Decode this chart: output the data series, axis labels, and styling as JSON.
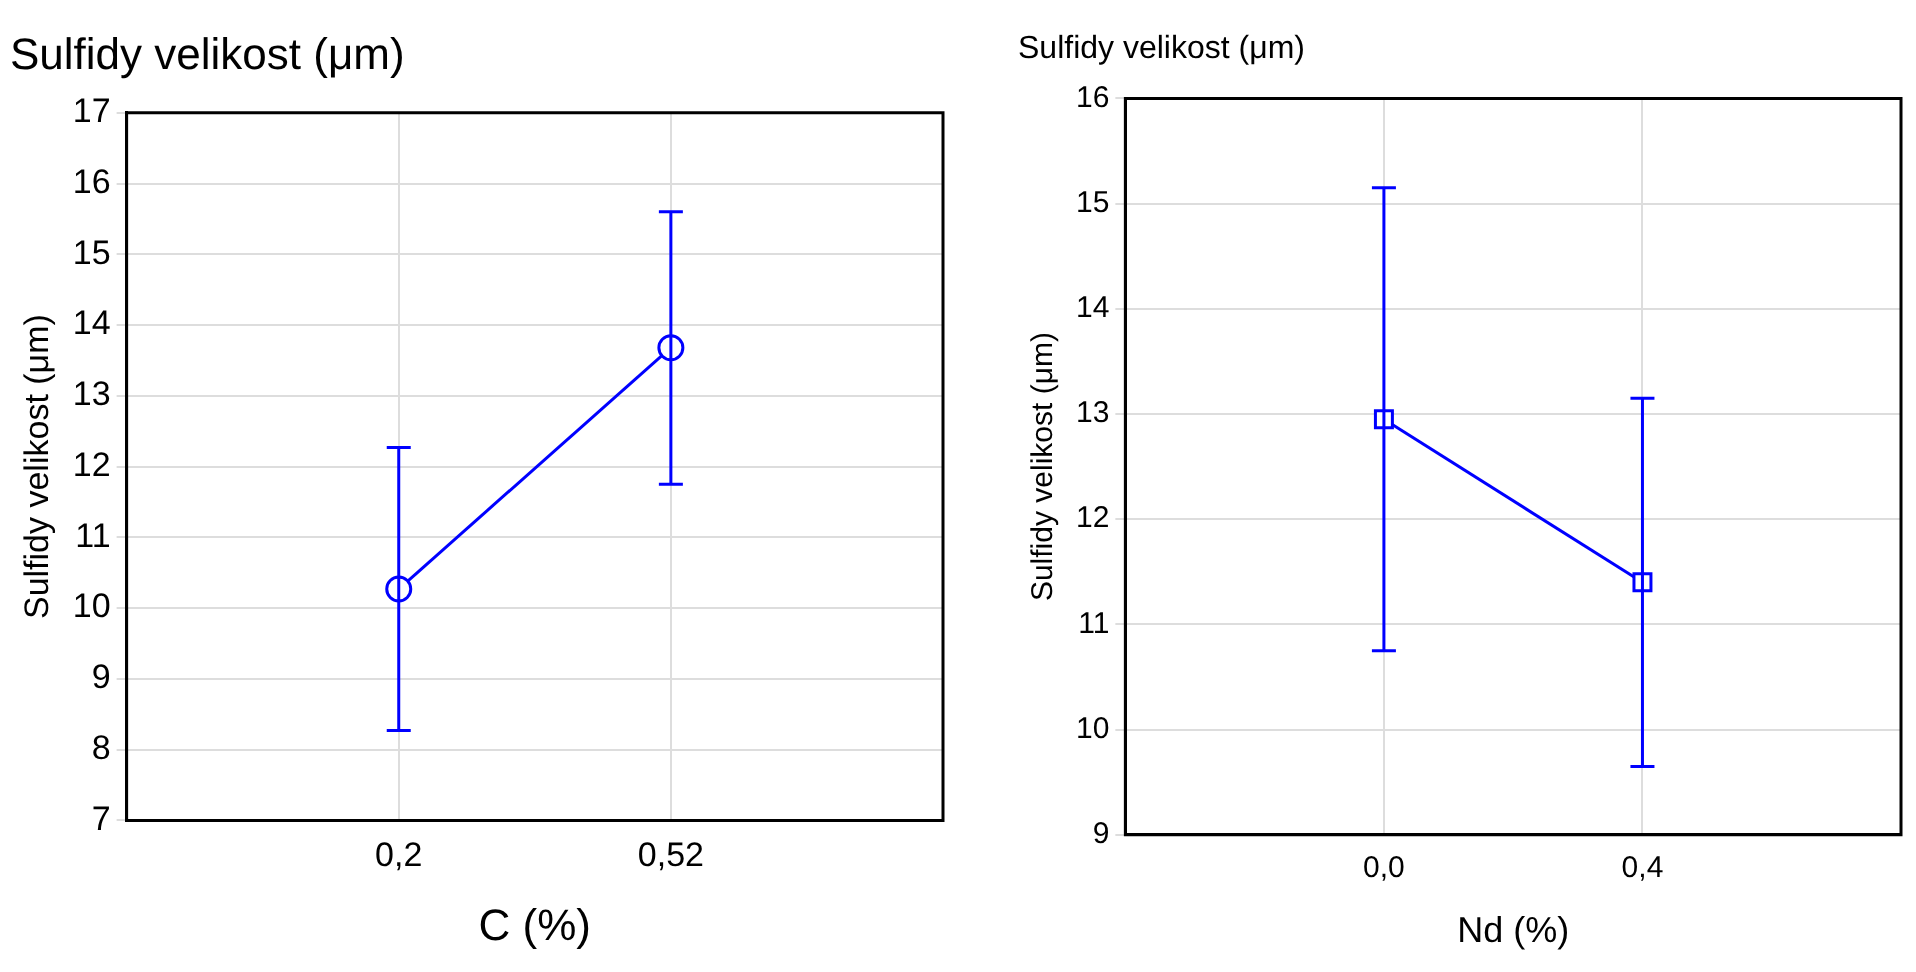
{
  "chart_data": [
    {
      "type": "line",
      "title": "Sulfidy velikost (μm)",
      "xlabel": "C (%)",
      "ylabel": "Sulfidy velikost (μm)",
      "categories": [
        "0,2",
        "0,52"
      ],
      "series": [
        {
          "color": "#0000ff",
          "values": [
            10.27,
            13.68
          ],
          "errors": [
            [
              8.27,
              12.27
            ],
            [
              11.75,
              15.6
            ]
          ]
        }
      ],
      "ylim": [
        7,
        17
      ],
      "yticks": [
        7,
        8,
        9,
        10,
        11,
        12,
        13,
        14,
        15,
        16,
        17
      ],
      "grid": true,
      "marker": "circle",
      "legend": false
    },
    {
      "type": "line",
      "title": "Sulfidy velikost (μm)",
      "xlabel": "Nd (%)",
      "ylabel": "Sulfidy velikost (μm)",
      "categories": [
        "0,0",
        "0,4"
      ],
      "series": [
        {
          "color": "#0000ff",
          "values": [
            12.95,
            11.4
          ],
          "errors": [
            [
              10.75,
              15.15
            ],
            [
              9.65,
              13.15
            ]
          ]
        }
      ],
      "ylim": [
        9,
        16
      ],
      "yticks": [
        9,
        10,
        11,
        12,
        13,
        14,
        15,
        16
      ],
      "grid": true,
      "marker": "square",
      "legend": false
    }
  ]
}
